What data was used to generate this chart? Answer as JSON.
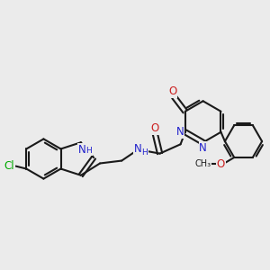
{
  "background_color": "#ebebeb",
  "bond_color": "#1a1a1a",
  "nitrogen_color": "#2020cc",
  "oxygen_color": "#cc2020",
  "chlorine_color": "#00aa00",
  "font_size": 8.5,
  "line_width": 1.5,
  "figsize": [
    3.0,
    3.0
  ],
  "dpi": 100,
  "xlim": [
    0,
    10
  ],
  "ylim": [
    0,
    10
  ]
}
